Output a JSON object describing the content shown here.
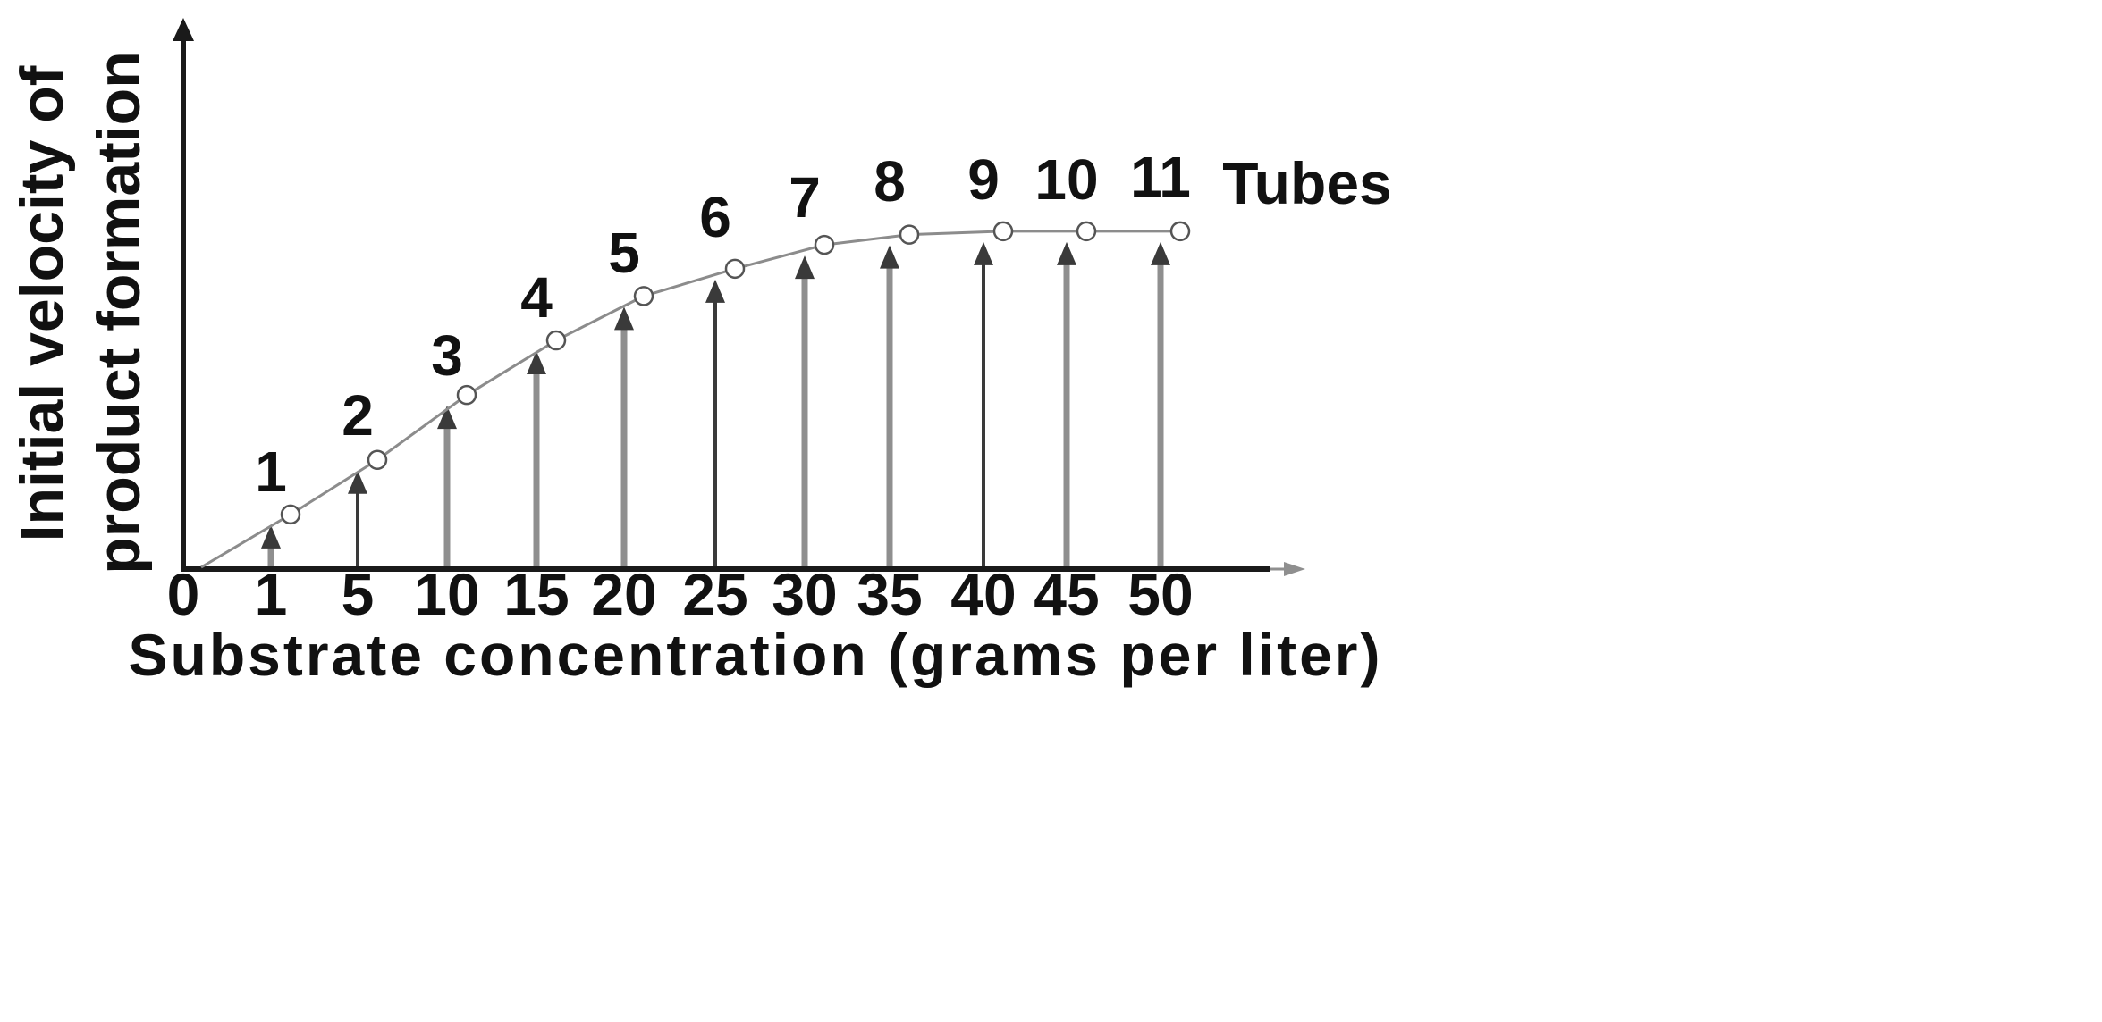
{
  "chart_data": {
    "type": "line",
    "title": "",
    "xlabel": "Substrate concentration (grams per liter)",
    "ylabel_lines": [
      "Initial velocity of",
      "product formation"
    ],
    "series_label": "Tubes",
    "x_ticks": [
      "0",
      "1",
      "5",
      "10",
      "15",
      "20",
      "25",
      "30",
      "35",
      "40",
      "45",
      "50"
    ],
    "tubes": [
      "1",
      "2",
      "3",
      "4",
      "5",
      "6",
      "7",
      "8",
      "9",
      "10",
      "11"
    ],
    "x": [
      1,
      5,
      10,
      15,
      20,
      25,
      30,
      35,
      40,
      45,
      50
    ],
    "values": [
      0.16,
      0.32,
      0.51,
      0.67,
      0.8,
      0.88,
      0.95,
      0.98,
      0.99,
      0.99,
      0.99
    ],
    "ylim": [
      0,
      1
    ],
    "grid": false,
    "legend": "none",
    "colors": {
      "axis": "#1a1a1a",
      "curve": "#8c8c8c",
      "marker": "#555555",
      "arrow_dark": "#3a3a3a",
      "arrow_light": "#8f8f8f",
      "text": "#111111"
    }
  }
}
